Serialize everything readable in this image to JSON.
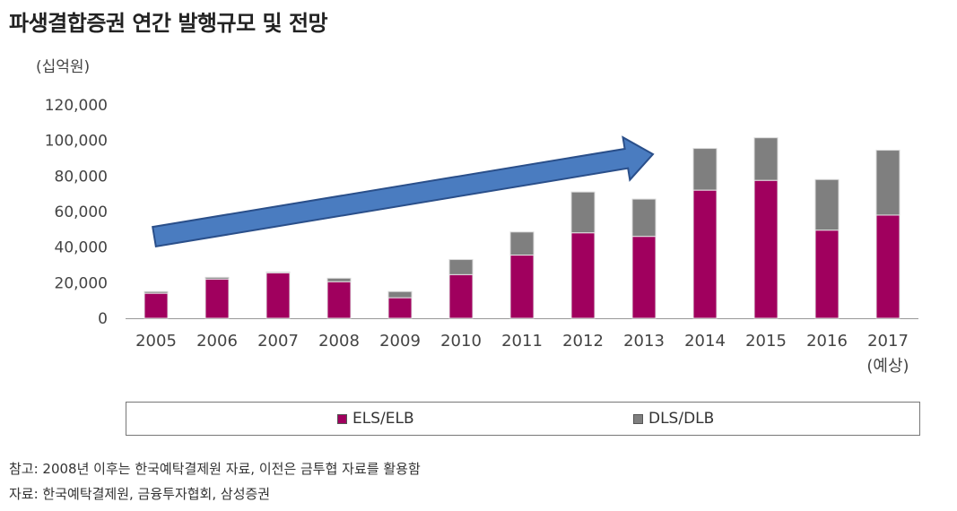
{
  "title": "파생결합증권 연간 발행규모 및 전망",
  "unit": "(십억원)",
  "notes": {
    "reference": "참고: 2008년 이후는 한국예탁결제원 자료, 이전은 금투협 자료를 활용함",
    "source": "자료: 한국예탁결제원, 금융투자협회, 삼성증권"
  },
  "colors": {
    "els": "#a0005e",
    "dls": "#7f7f7f",
    "arrow_fill": "#4a7cc0",
    "arrow_stroke": "#2a4f8a"
  },
  "chart_data": {
    "type": "bar",
    "stacked": true,
    "title": "파생결합증권 연간 발행규모 및 전망",
    "ylabel": "(십억원)",
    "ylim": [
      0,
      120000
    ],
    "yticks": [
      "0",
      "20,000",
      "40,000",
      "60,000",
      "80,000",
      "100,000",
      "120,000"
    ],
    "categories": [
      "2005",
      "2006",
      "2007",
      "2008",
      "2009",
      "2010",
      "2011",
      "2012",
      "2013",
      "2014",
      "2015",
      "2016",
      "2017"
    ],
    "category_sublabels": [
      "",
      "",
      "",
      "",
      "",
      "",
      "",
      "",
      "",
      "",
      "",
      "",
      "(예상)"
    ],
    "series": [
      {
        "name": "ELS/ELB",
        "values": [
          14000,
          22000,
          25500,
          20500,
          11500,
          24500,
          35500,
          48000,
          46000,
          72000,
          77500,
          49500,
          58000
        ]
      },
      {
        "name": "DLS/DLB",
        "values": [
          1000,
          1000,
          500,
          2000,
          3500,
          8500,
          13000,
          23000,
          21000,
          23500,
          24000,
          28500,
          36500
        ]
      }
    ],
    "legend_position": "bottom",
    "annotation": "upward-trend-arrow"
  }
}
